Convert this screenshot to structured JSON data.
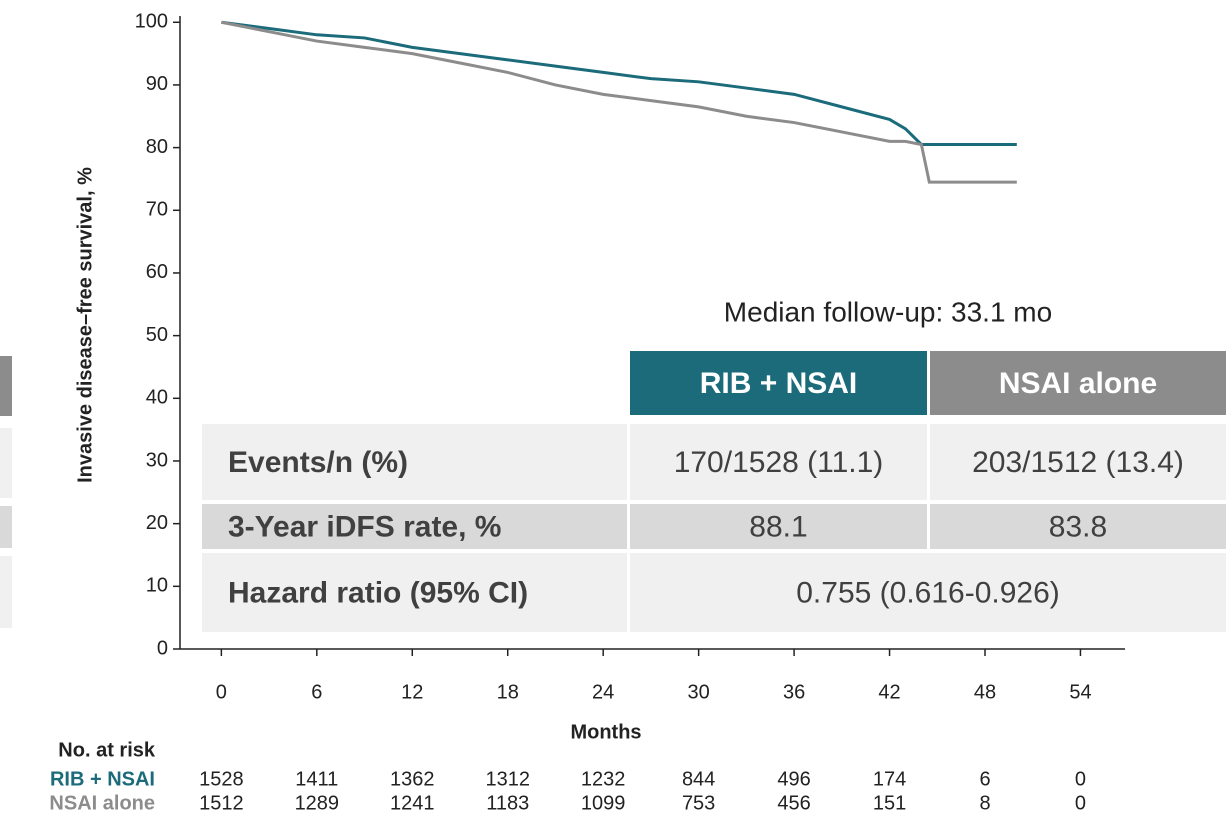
{
  "chart_data": {
    "type": "line",
    "y_label": "Invasive disease–free survival, %",
    "x_label": "Months",
    "annotation": "Median follow-up: 33.1 mo",
    "x": [
      0,
      3,
      6,
      9,
      12,
      15,
      18,
      21,
      24,
      27,
      30,
      33,
      36,
      39,
      42,
      43,
      44,
      44.5,
      50
    ],
    "series": [
      {
        "name": "RIB + NSAI",
        "color": "#1b6b7b",
        "values": [
          100,
          99,
          98,
          97.5,
          96,
          95,
          94,
          93,
          92,
          91,
          90.5,
          89.5,
          88.5,
          86.5,
          84.5,
          83,
          80.5,
          80.5,
          80.5
        ]
      },
      {
        "name": "NSAI alone",
        "color": "#8c8c8c",
        "values": [
          100,
          98.5,
          97,
          96,
          95,
          93.5,
          92,
          90,
          88.5,
          87.5,
          86.5,
          85,
          84,
          82.5,
          81,
          81,
          80.5,
          74.5,
          74.5
        ]
      }
    ],
    "xlim": [
      -2.6,
      56.8
    ],
    "xticks": [
      0,
      6,
      12,
      18,
      24,
      30,
      36,
      42,
      48,
      54
    ],
    "ylim": [
      0,
      101
    ],
    "yticks": [
      0,
      10,
      20,
      30,
      40,
      50,
      60,
      70,
      80,
      90,
      100
    ],
    "risk_table": {
      "title": "No. at risk",
      "rows": [
        {
          "name": "RIB + NSAI",
          "counts": [
            1528,
            1411,
            1362,
            1312,
            1232,
            844,
            496,
            174,
            6,
            0
          ]
        },
        {
          "name": "NSAI alone",
          "counts": [
            1512,
            1289,
            1241,
            1183,
            1099,
            753,
            456,
            151,
            8,
            0
          ]
        }
      ]
    }
  },
  "table": {
    "columns": [
      "RIB + NSAI",
      "NSAI alone"
    ],
    "rows": [
      {
        "label": "Events/n (%)",
        "cells": [
          "170/1528 (11.1)",
          "203/1512 (13.4)"
        ]
      },
      {
        "label": "3-Year iDFS rate, %",
        "cells": [
          "88.1",
          "83.8"
        ]
      },
      {
        "label": "Hazard ratio (95% CI)",
        "cells": [
          "0.755 (0.616-0.926)"
        ]
      }
    ]
  }
}
